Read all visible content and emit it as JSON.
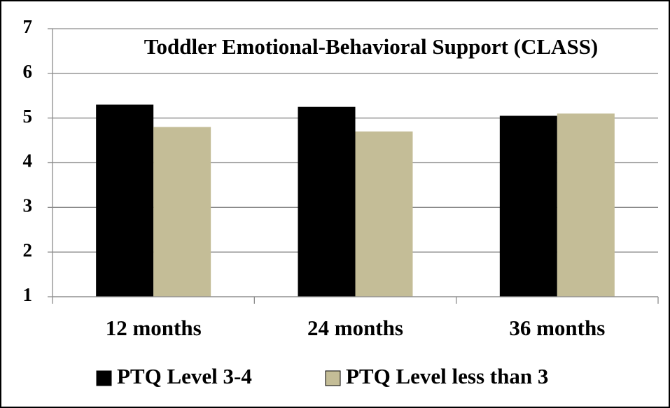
{
  "chart_data": {
    "type": "bar",
    "title": "Toddler Emotional-Behavioral Support (CLASS)",
    "categories": [
      "12 months",
      "24 months",
      "36 months"
    ],
    "series": [
      {
        "name": "PTQ Level 3-4",
        "color": "#000000",
        "values": [
          5.3,
          5.25,
          5.05
        ]
      },
      {
        "name": "PTQ Level less than 3",
        "color": "#c4bd97",
        "values": [
          4.8,
          4.7,
          5.1
        ]
      }
    ],
    "ylim": [
      1,
      7
    ],
    "yticks": [
      1,
      2,
      3,
      4,
      5,
      6,
      7
    ],
    "grid": true
  }
}
